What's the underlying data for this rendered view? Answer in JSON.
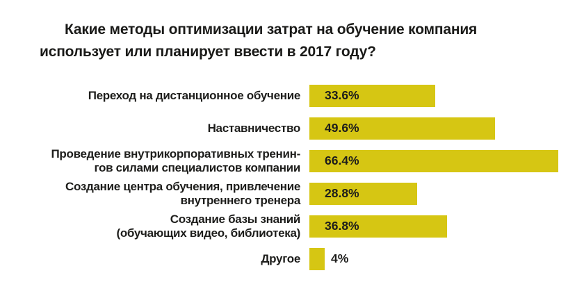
{
  "title": {
    "line1": "Какие методы оптимизации затрат на обучение компания",
    "line2": "использует или планирует ввести в 2017 году?"
  },
  "chart_data": {
    "type": "bar",
    "orientation": "horizontal",
    "title": "Какие методы оптимизации затрат на обучение компания использует или планирует ввести в 2017 году?",
    "categories": [
      "Переход на дистанционное обучение",
      "Наставничество",
      "Проведение внутрикорпоративных тренингов силами специалистов компании",
      "Создание центра обучения, привлечение внутреннего тренера",
      "Создание базы знаний (обучающих видео, библиотека)",
      "Другое"
    ],
    "label_lines": [
      [
        "Переход на дистанционное обучение"
      ],
      [
        "Наставничество"
      ],
      [
        "Проведение внутрикорпоративных тренин-",
        "гов силами специалистов компании"
      ],
      [
        "Создание центра обучения, привлечение",
        "внутреннего тренера"
      ],
      [
        "Создание базы знаний",
        "(обучающих видео, библиотека)"
      ],
      [
        "Другое"
      ]
    ],
    "values": [
      33.6,
      49.6,
      66.4,
      28.8,
      36.8,
      4
    ],
    "value_labels": [
      "33.6%",
      "49.6%",
      "66.4%",
      "28.8%",
      "36.8%",
      "4%"
    ],
    "xlim": [
      0,
      70
    ],
    "grid": false,
    "legend": "none",
    "bar_color": "#d6c613",
    "text_color": "#1d1d1b"
  }
}
